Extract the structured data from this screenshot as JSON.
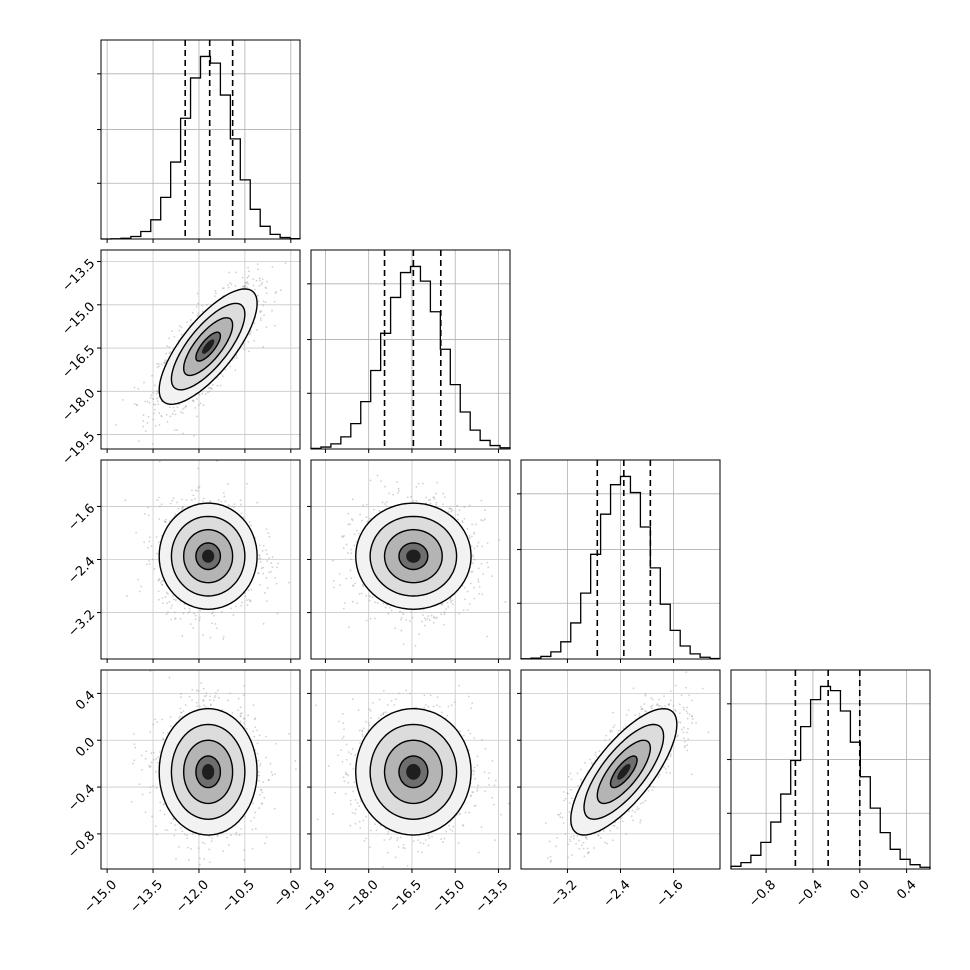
{
  "chart_data": {
    "type": "corner",
    "title": "",
    "parameters": [
      {
        "ticks": [
          -15.0,
          -13.5,
          -12.0,
          -10.5,
          -9.0
        ],
        "tick_labels": [
          "−15.0",
          "−13.5",
          "−12.0",
          "−10.5",
          "−9.0"
        ],
        "range": [
          -15.2,
          -8.7
        ],
        "quantiles": [
          -12.45,
          -11.65,
          -10.9
        ],
        "mean": -11.7,
        "sd": 0.8
      },
      {
        "ticks": [
          -19.5,
          -18.0,
          -16.5,
          -15.0,
          -13.5
        ],
        "tick_labels": [
          "−19.5",
          "−18.0",
          "−16.5",
          "−15.0",
          "−13.5"
        ],
        "range": [
          -20.0,
          -13.1
        ],
        "quantiles": [
          -17.45,
          -16.45,
          -15.5
        ],
        "mean": -16.45,
        "sd": 1.0
      },
      {
        "ticks": [
          -3.2,
          -2.4,
          -1.6
        ],
        "tick_labels": [
          "−3.2",
          "−2.4",
          "−1.6"
        ],
        "range": [
          -3.9,
          -0.9
        ],
        "quantiles": [
          -2.75,
          -2.35,
          -1.95
        ],
        "mean": -2.35,
        "sd": 0.4
      },
      {
        "ticks": [
          -0.8,
          -0.4,
          0.0,
          0.4
        ],
        "tick_labels": [
          "−0.8",
          "−0.4",
          "0.0",
          "0.4"
        ],
        "range": [
          -1.1,
          0.6
        ],
        "quantiles": [
          -0.55,
          -0.27,
          0.0
        ],
        "mean": -0.27,
        "sd": 0.27
      }
    ],
    "correlations": [
      [
        1,
        0.75,
        0.0,
        0.0
      ],
      [
        0.75,
        1,
        0.0,
        0.0
      ],
      [
        0.0,
        0.0,
        1,
        0.75
      ],
      [
        0.0,
        0.0,
        0.75,
        1
      ]
    ],
    "grid": true,
    "histogram_bins": 20,
    "contour_levels": [
      "0.5σ",
      "1σ",
      "1.5σ",
      "2σ"
    ]
  }
}
